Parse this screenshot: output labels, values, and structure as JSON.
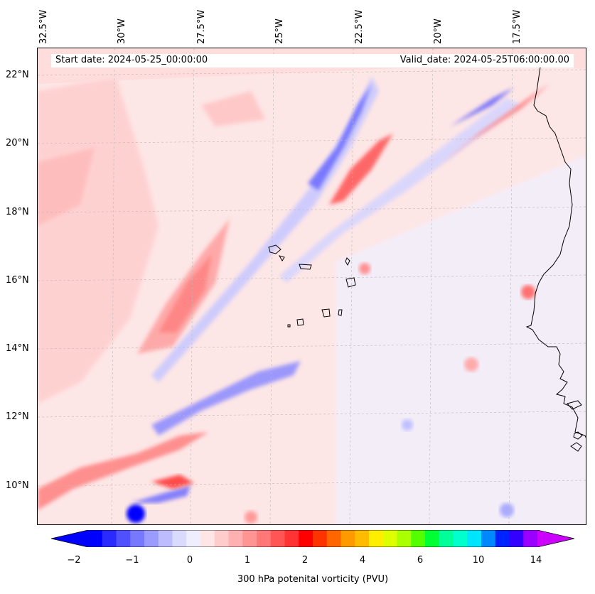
{
  "map": {
    "lon_labels": [
      "32.5°W",
      "30°W",
      "27.5°W",
      "25°W",
      "22.5°W",
      "20°W",
      "17.5°W"
    ],
    "lat_labels": [
      "22°N",
      "20°N",
      "18°N",
      "16°N",
      "14°N",
      "12°N",
      "10°N"
    ],
    "start_date": "Start date: 2024-05-25_00:00:00",
    "valid_date": "Valid_date: 2024-05-25T06:00:00.00"
  },
  "colorbar": {
    "ticks": [
      "−2",
      "−1",
      "0",
      "1",
      "2",
      "4",
      "6",
      "10",
      "14"
    ],
    "label": "300 hPa potenital vorticity (PVU)",
    "colors": [
      "#0000ff",
      "#2a2aff",
      "#5050ff",
      "#7878ff",
      "#9a9aff",
      "#bcbcff",
      "#dadaff",
      "#eeeeff",
      "#ffe6e6",
      "#ffcccc",
      "#ffb0b0",
      "#ff9494",
      "#ff7777",
      "#ff5555",
      "#ff3333",
      "#ff0000",
      "#ff3300",
      "#ff6600",
      "#ff9900",
      "#ffbb00",
      "#ffee00",
      "#ddff00",
      "#aaff00",
      "#55ff00",
      "#00ff33",
      "#00ff99",
      "#00ffcc",
      "#00e5ff",
      "#0088ff",
      "#0022ff",
      "#3300ff",
      "#9900ff"
    ],
    "under_color": "#0000ff",
    "over_color": "#cc00ff"
  }
}
